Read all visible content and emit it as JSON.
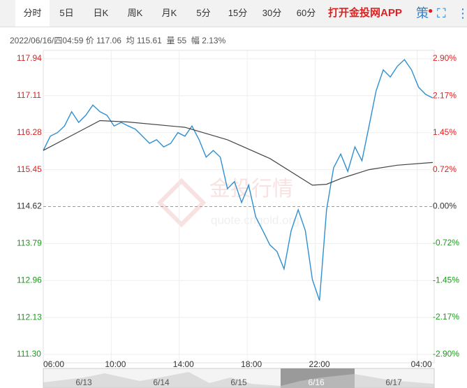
{
  "tabs": [
    "分时",
    "5日",
    "日K",
    "周K",
    "月K",
    "5分",
    "15分",
    "30分",
    "60分"
  ],
  "app_link": "打开金投网APP",
  "strategy_icon": "策",
  "info": {
    "datetime": "2022/06/16/四04:59",
    "price_label": "价",
    "price": "117.06",
    "avg_label": "均",
    "avg": "115.61",
    "vol_label": "量",
    "vol": "55",
    "amp_label": "幅",
    "amp": "2.13%"
  },
  "watermark": {
    "brand": "金投行情",
    "site": "quote.cngold.org"
  },
  "navigator_dates": [
    "6/13",
    "6/14",
    "6/15",
    "6/16",
    "6/17"
  ],
  "chart_data": {
    "type": "line",
    "x": [
      0,
      25,
      50,
      75,
      100,
      125,
      150,
      175,
      200,
      225,
      250,
      275,
      300,
      325,
      350,
      375,
      400,
      425,
      450,
      475,
      500,
      525,
      550,
      575,
      600,
      625,
      650,
      675,
      700,
      725,
      750,
      775,
      800,
      825,
      850,
      875,
      900,
      925,
      950,
      975,
      1000,
      1025,
      1050,
      1075,
      1100,
      1125,
      1150,
      1175,
      1200,
      1225,
      1250,
      1275,
      1300,
      1325,
      1350,
      1375
    ],
    "series": [
      {
        "name": "价",
        "color": "#2f8fd0",
        "values": [
          115.88,
          116.2,
          116.28,
          116.43,
          116.75,
          116.51,
          116.67,
          116.9,
          116.75,
          116.67,
          116.43,
          116.51,
          116.43,
          116.36,
          116.2,
          116.04,
          116.12,
          115.96,
          116.04,
          116.28,
          116.2,
          116.43,
          116.12,
          115.73,
          115.88,
          115.73,
          115.02,
          115.18,
          114.71,
          115.1,
          114.39,
          114.08,
          113.76,
          113.61,
          113.22,
          114.08,
          114.55,
          114.08,
          112.98,
          112.51,
          114.55,
          115.49,
          115.8,
          115.41,
          115.96,
          115.65,
          116.43,
          117.22,
          117.69,
          117.53,
          117.77,
          117.92,
          117.69,
          117.3,
          117.14,
          117.06
        ]
      },
      {
        "name": "均",
        "color": "#444444",
        "x": [
          0,
          200,
          300,
          500,
          650,
          800,
          950,
          1000,
          1050,
          1150,
          1250,
          1375
        ],
        "values": [
          115.88,
          116.55,
          116.52,
          116.4,
          116.12,
          115.7,
          115.1,
          115.12,
          115.25,
          115.45,
          115.55,
          115.61
        ]
      }
    ],
    "xlim": [
      0,
      1380
    ],
    "xticks": [
      {
        "value": 0,
        "label": "06:00"
      },
      {
        "value": 240,
        "label": "10:00"
      },
      {
        "value": 480,
        "label": "14:00"
      },
      {
        "value": 720,
        "label": "18:00"
      },
      {
        "value": 960,
        "label": "22:00"
      },
      {
        "value": 1320,
        "label": "04:00"
      }
    ],
    "ylim": [
      111.3,
      117.94
    ],
    "yticks": [
      117.94,
      117.11,
      116.28,
      115.45,
      114.62,
      113.79,
      112.96,
      112.13,
      {
        "value": 111.3,
        "label": "111.30"
      }
    ],
    "y2lim": [
      -2.9,
      2.9
    ],
    "y2ticks": [
      {
        "value": 2.9,
        "label": "2.90%"
      },
      {
        "value": 2.17,
        "label": "2.17%"
      },
      {
        "value": 1.45,
        "label": "1.45%"
      },
      {
        "value": 0.72,
        "label": "0.72%"
      },
      {
        "value": 0,
        "label": "0.00%"
      },
      {
        "value": -0.72,
        "label": "-0.72%"
      },
      {
        "value": -1.45,
        "label": "-1.45%"
      },
      {
        "value": -2.17,
        "label": "-2.17%"
      },
      {
        "value": -2.9,
        "label": "-2.90%"
      }
    ],
    "grid": true,
    "up_color": "#e02020",
    "down_color": "#1a9a1a",
    "flat_color": "#333333"
  }
}
